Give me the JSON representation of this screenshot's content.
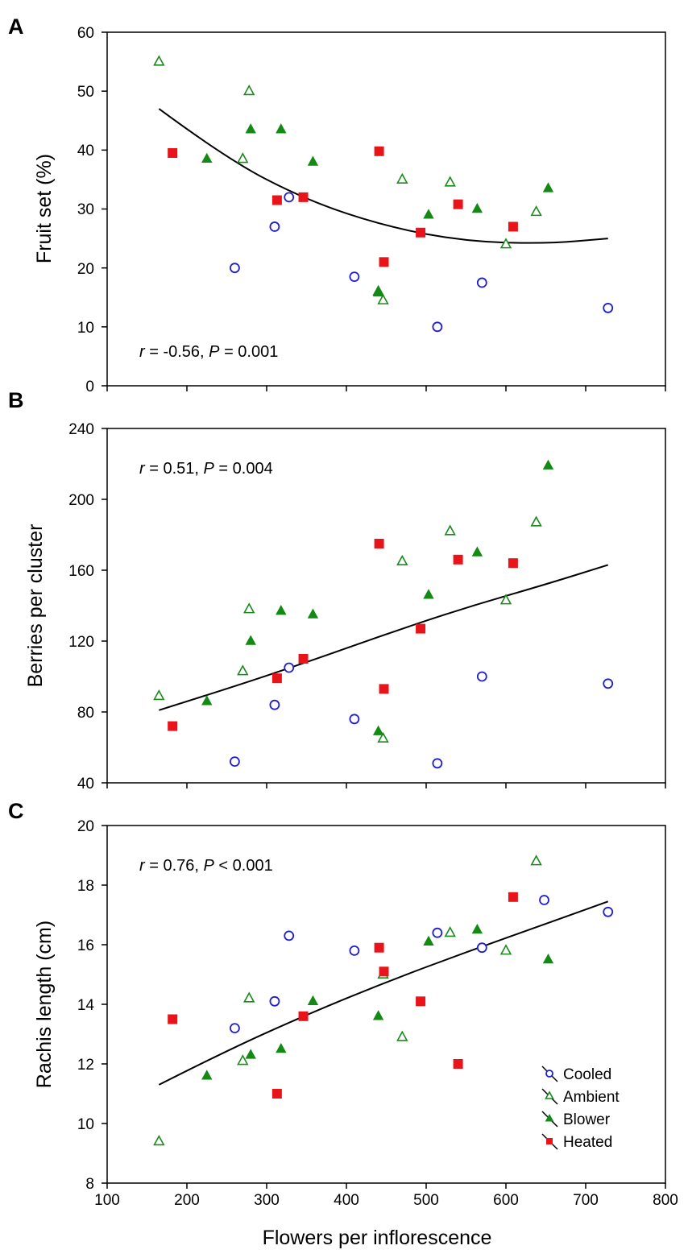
{
  "figure": {
    "x_label": "Flowers per inflorescence",
    "x_ticks": [
      "100",
      "200",
      "300",
      "400",
      "500",
      "600",
      "700",
      "800"
    ],
    "colors": {
      "cooled": "#1f1fd1",
      "ambient": "#1a8a1a",
      "blower": "#138a13",
      "heated": "#e8141a",
      "fit": "#000000"
    },
    "legend": [
      {
        "key": "cooled",
        "label": "Cooled",
        "marker": "circle-open"
      },
      {
        "key": "ambient",
        "label": "Ambient",
        "marker": "triangle-open"
      },
      {
        "key": "blower",
        "label": "Blower",
        "marker": "triangle-filled"
      },
      {
        "key": "heated",
        "label": "Heated",
        "marker": "square-filled"
      }
    ]
  },
  "chart_data": [
    {
      "type": "scatter",
      "panel": "A",
      "title": "",
      "xlabel": "Flowers per inflorescence",
      "ylabel": "Fruit set (%)",
      "xlim": [
        100,
        800
      ],
      "ylim": [
        0,
        60
      ],
      "x_ticks": [
        100,
        200,
        300,
        400,
        500,
        600,
        700,
        800
      ],
      "y_ticks": [
        "0",
        "10",
        "20",
        "30",
        "40",
        "50",
        "60"
      ],
      "annotation": {
        "r_symbol": "r",
        "r_value": " = -0.56, ",
        "p_symbol": "P",
        "p_value": " = 0.001"
      },
      "fit": {
        "kind": "quadratic",
        "x": [
          165,
          250,
          350,
          450,
          550,
          650,
          728
        ],
        "y": [
          47,
          38.5,
          31.5,
          27,
          24.5,
          24.1,
          25
        ]
      },
      "series": [
        {
          "name": "Cooled",
          "marker": "circle-open",
          "x": [
            260,
            310,
            328,
            410,
            514,
            570,
            728
          ],
          "y": [
            20,
            27,
            32,
            18.5,
            10,
            17.5,
            13.2
          ]
        },
        {
          "name": "Ambient",
          "marker": "triangle-open",
          "x": [
            165,
            270,
            278,
            440,
            446,
            470,
            530,
            600,
            638
          ],
          "y": [
            55,
            38.5,
            50,
            16,
            14.5,
            35,
            34.5,
            24,
            29.5
          ]
        },
        {
          "name": "Blower",
          "marker": "triangle-filled",
          "x": [
            225,
            280,
            318,
            358,
            440,
            503,
            564,
            653
          ],
          "y": [
            38.5,
            43.5,
            43.5,
            38,
            15.8,
            29,
            30,
            33.5
          ]
        },
        {
          "name": "Heated",
          "marker": "square-filled",
          "x": [
            182,
            313,
            346,
            441,
            447,
            493,
            540,
            609
          ],
          "y": [
            39.5,
            31.5,
            32,
            39.8,
            21,
            26,
            30.8,
            27
          ]
        }
      ]
    },
    {
      "type": "scatter",
      "panel": "B",
      "title": "",
      "xlabel": "Flowers per inflorescence",
      "ylabel": "Berries per cluster",
      "xlim": [
        100,
        800
      ],
      "ylim": [
        40,
        240
      ],
      "x_ticks": [
        100,
        200,
        300,
        400,
        500,
        600,
        700,
        800
      ],
      "y_ticks": [
        "40",
        "80",
        "120",
        "160",
        "200",
        "240"
      ],
      "annotation": {
        "r_symbol": "r",
        "r_value": " = 0.51, ",
        "p_symbol": "P",
        "p_value": " = 0.004"
      },
      "fit": {
        "kind": "quadratic",
        "x": [
          165,
          250,
          350,
          450,
          550,
          650,
          728
        ],
        "y": [
          81,
          93,
          108,
          124,
          139,
          152,
          163
        ]
      },
      "series": [
        {
          "name": "Cooled",
          "marker": "circle-open",
          "x": [
            260,
            310,
            328,
            410,
            514,
            570,
            728
          ],
          "y": [
            52,
            84,
            105,
            76,
            51,
            100,
            96
          ]
        },
        {
          "name": "Ambient",
          "marker": "triangle-open",
          "x": [
            165,
            270,
            278,
            446,
            470,
            530,
            600,
            638
          ],
          "y": [
            89,
            103,
            138,
            65,
            165,
            182,
            143,
            187
          ]
        },
        {
          "name": "Blower",
          "marker": "triangle-filled",
          "x": [
            225,
            280,
            318,
            358,
            440,
            503,
            564,
            653
          ],
          "y": [
            86,
            120,
            137,
            135,
            69,
            146,
            170,
            219
          ]
        },
        {
          "name": "Heated",
          "marker": "square-filled",
          "x": [
            182,
            313,
            346,
            441,
            447,
            493,
            540,
            609
          ],
          "y": [
            72,
            99,
            110,
            175,
            93,
            127,
            166,
            164
          ]
        }
      ]
    },
    {
      "type": "scatter",
      "panel": "C",
      "title": "",
      "xlabel": "Flowers per inflorescence",
      "ylabel": "Rachis length (cm)",
      "xlim": [
        100,
        800
      ],
      "ylim": [
        8,
        20
      ],
      "x_ticks": [
        100,
        200,
        300,
        400,
        500,
        600,
        700,
        800
      ],
      "y_ticks": [
        "8",
        "10",
        "12",
        "14",
        "16",
        "18",
        "20"
      ],
      "annotation": {
        "r_symbol": "r",
        "r_value": " = 0.76, ",
        "p_symbol": "P",
        "p_value": " < 0.001"
      },
      "fit": {
        "kind": "quadratic",
        "x": [
          165,
          250,
          350,
          450,
          550,
          650,
          728
        ],
        "y": [
          11.3,
          12.45,
          13.65,
          14.75,
          15.75,
          16.7,
          17.45
        ]
      },
      "series": [
        {
          "name": "Cooled",
          "marker": "circle-open",
          "x": [
            260,
            310,
            328,
            410,
            514,
            570,
            648,
            728
          ],
          "y": [
            13.2,
            14.1,
            16.3,
            15.8,
            16.4,
            15.9,
            17.5,
            17.1
          ]
        },
        {
          "name": "Ambient",
          "marker": "triangle-open",
          "x": [
            165,
            270,
            278,
            446,
            470,
            530,
            600,
            638
          ],
          "y": [
            9.4,
            12.1,
            14.2,
            15,
            12.9,
            16.4,
            15.8,
            18.8
          ]
        },
        {
          "name": "Blower",
          "marker": "triangle-filled",
          "x": [
            225,
            280,
            318,
            358,
            440,
            503,
            564,
            653
          ],
          "y": [
            11.6,
            12.3,
            12.5,
            14.1,
            13.6,
            16.1,
            16.5,
            15.5
          ]
        },
        {
          "name": "Heated",
          "marker": "square-filled",
          "x": [
            182,
            313,
            346,
            441,
            447,
            493,
            540,
            609
          ],
          "y": [
            13.5,
            11,
            13.6,
            15.9,
            15.1,
            14.1,
            12,
            17.6
          ]
        }
      ]
    }
  ]
}
